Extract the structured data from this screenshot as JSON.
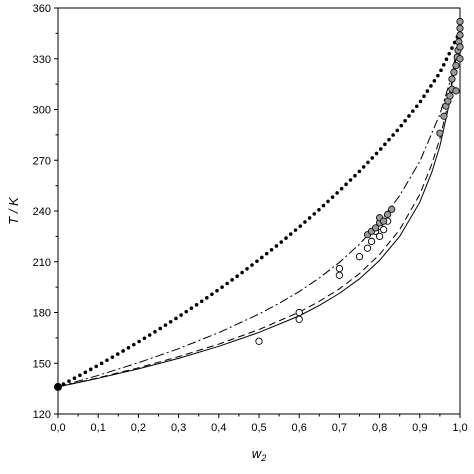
{
  "chart_data": {
    "type": "scatter",
    "xlabel": "w",
    "xlabel_sub": "2",
    "ylabel": "T / K",
    "xlim": [
      0,
      1
    ],
    "ylim": [
      120,
      360
    ],
    "x_ticks": [
      0.0,
      0.1,
      0.2,
      0.3,
      0.4,
      0.5,
      0.6,
      0.7,
      0.8,
      0.9,
      1.0
    ],
    "x_tick_labels": [
      "0,0",
      "0,1",
      "0,2",
      "0,3",
      "0,4",
      "0,5",
      "0,6",
      "0,7",
      "0,8",
      "0,9",
      "1,0"
    ],
    "y_ticks": [
      120,
      150,
      180,
      210,
      240,
      270,
      300,
      330,
      360
    ],
    "y_tick_labels": [
      "120",
      "150",
      "180",
      "210",
      "240",
      "270",
      "300",
      "330",
      "360"
    ],
    "grid": false,
    "series": [
      {
        "style": "filled-black-point",
        "x": [
          0.0
        ],
        "y": [
          136
        ]
      },
      {
        "style": "open-circle",
        "x": [
          0.5,
          0.6,
          0.6,
          0.7,
          0.7,
          0.75,
          0.77,
          0.78,
          0.79,
          0.8,
          0.8,
          0.81,
          0.82
        ],
        "y": [
          163,
          176,
          180,
          202,
          206,
          213,
          218,
          222,
          228,
          225,
          231,
          229,
          234
        ]
      },
      {
        "style": "grey-filled-circle",
        "x": [
          0.77,
          0.78,
          0.79,
          0.8,
          0.8,
          0.81,
          0.82,
          0.83,
          0.95,
          0.96,
          0.965,
          0.97,
          0.975,
          0.98,
          0.98,
          0.985,
          0.99,
          0.99,
          0.993,
          0.995,
          0.997,
          1.0,
          1.0,
          1.0,
          1.0,
          1.0
        ],
        "y": [
          226,
          228,
          230,
          233,
          236,
          234,
          238,
          241,
          286,
          296,
          302,
          305,
          308,
          312,
          318,
          322,
          326,
          311,
          331,
          335,
          340,
          330,
          337,
          344,
          348,
          352
        ]
      },
      {
        "style": "dotted-line",
        "x": [
          0,
          0.05,
          0.1,
          0.15,
          0.2,
          0.25,
          0.3,
          0.35,
          0.4,
          0.45,
          0.5,
          0.55,
          0.6,
          0.65,
          0.7,
          0.75,
          0.8,
          0.85,
          0.9,
          0.95,
          1.0
        ],
        "y": [
          136,
          142.3,
          148.8,
          155.6,
          162.6,
          169.9,
          177.5,
          185.4,
          193.6,
          202.2,
          211.2,
          220.6,
          230.5,
          240.9,
          251.9,
          263.5,
          275.9,
          289.3,
          304.2,
          321.8,
          346
        ]
      },
      {
        "style": "dash-dot-line",
        "x": [
          0,
          0.1,
          0.2,
          0.3,
          0.4,
          0.5,
          0.55,
          0.6,
          0.65,
          0.7,
          0.75,
          0.8,
          0.85,
          0.9,
          0.95,
          0.98,
          1.0
        ],
        "y": [
          136,
          142.8,
          150.3,
          158.6,
          168.1,
          179.1,
          185.4,
          192.4,
          200.4,
          209.6,
          220.4,
          233.3,
          249.1,
          269.3,
          297.2,
          320.3,
          346
        ]
      },
      {
        "style": "dashed-line",
        "x": [
          0,
          0.1,
          0.2,
          0.3,
          0.4,
          0.5,
          0.6,
          0.65,
          0.7,
          0.75,
          0.8,
          0.85,
          0.9,
          0.93,
          0.95,
          0.97,
          0.99,
          1.0
        ],
        "y": [
          136,
          141.4,
          147.3,
          153.9,
          161.3,
          169.9,
          180.2,
          186.6,
          194,
          203,
          214.3,
          229,
          249.8,
          267.8,
          282.8,
          303,
          331.5,
          346
        ]
      },
      {
        "style": "solid-line",
        "x": [
          0,
          0.1,
          0.2,
          0.3,
          0.4,
          0.5,
          0.6,
          0.65,
          0.7,
          0.75,
          0.8,
          0.85,
          0.9,
          0.93,
          0.95,
          0.97,
          0.99,
          1.0
        ],
        "y": [
          136,
          141.1,
          146.7,
          152.9,
          160,
          168.2,
          178,
          184.2,
          191.3,
          199.9,
          210.8,
          225,
          245.2,
          263,
          278.4,
          299.8,
          330.3,
          346
        ]
      }
    ]
  }
}
